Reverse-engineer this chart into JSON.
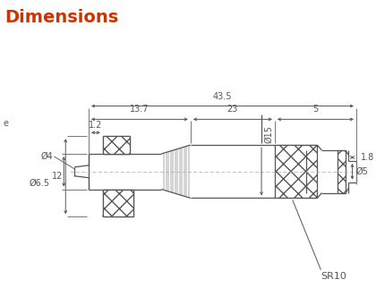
{
  "title": "Dimensions",
  "title_color": "#cc3300",
  "title_fontsize": 14,
  "bg_color": "#ffffff",
  "line_color": "#555555",
  "dim_fontsize": 7.0,
  "annotations": {
    "dim_43_5": "43.5",
    "dim_13_7": "13.7",
    "dim_23": "23",
    "dim_5": "5",
    "dim_1_2": "1.2",
    "dim_1_8": "1.8",
    "dim_phi4": "Ø4",
    "dim_phi6_5": "Ø6.5",
    "dim_phi15": "Ø15",
    "dim_phi5": "Ø5",
    "dim_12": "12",
    "dim_SR10": "SR10"
  }
}
